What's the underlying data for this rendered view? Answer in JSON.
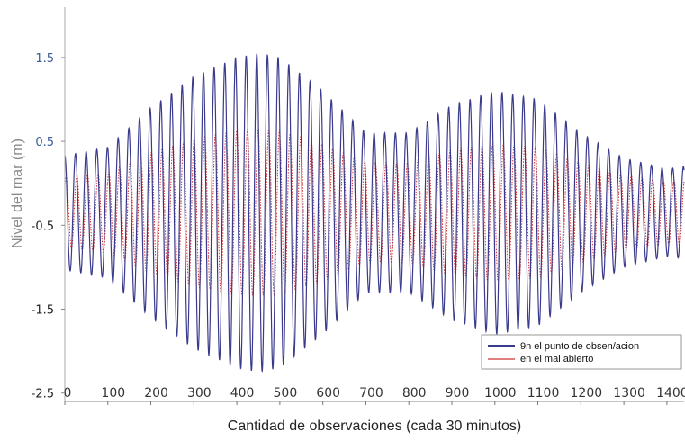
{
  "chart_data": {
    "type": "line",
    "title": "",
    "xlabel": "Cantidad de observaciones (cada 30 minutos)",
    "ylabel": "Nivel del mar (m)",
    "xlim": [
      0,
      1440
    ],
    "ylim": [
      -2.6,
      2.1
    ],
    "x_ticks": [
      0,
      100,
      200,
      300,
      400,
      500,
      600,
      700,
      800,
      900,
      1000,
      1100,
      1200,
      1300,
      1400
    ],
    "y_ticks": [
      -2.5,
      -1.5,
      -0.5,
      0.5,
      1.5
    ],
    "x_tick_labels": [
      "0",
      "100",
      "200",
      "300",
      "400",
      "500",
      "600",
      "700",
      "800",
      "900",
      "1000",
      "1100",
      "1200",
      "1300",
      "1400"
    ],
    "y_tick_labels": [
      "-2.5",
      "-1.5",
      "-0.5",
      "0.5",
      "1.5"
    ],
    "grid": false,
    "legend_position": "bottom-right",
    "series": [
      {
        "name": "9n el punto de obsen/acion",
        "color": "#3a3a8c",
        "style": "solid",
        "description_values": {
          "period_obs": 24.8,
          "envelope_x": [
            0,
            100,
            200,
            300,
            400,
            450,
            500,
            600,
            700,
            800,
            900,
            1000,
            1100,
            1200,
            1300,
            1400,
            1440
          ],
          "envelope_amp": [
            0.68,
            0.78,
            1.25,
            1.62,
            1.85,
            1.9,
            1.85,
            1.45,
            0.95,
            0.95,
            1.28,
            1.45,
            1.35,
            0.95,
            0.65,
            0.52,
            0.55
          ],
          "mean": -0.35
        }
      },
      {
        "name": "en el mai abierto",
        "color": "#cc3333",
        "style": "dotted",
        "description_values": {
          "period_obs": 24.8,
          "phase_shift_obs": 3,
          "envelope_x": [
            0,
            100,
            200,
            300,
            400,
            450,
            500,
            600,
            700,
            800,
            900,
            1000,
            1100,
            1200,
            1300,
            1400,
            1440
          ],
          "envelope_amp": [
            0.42,
            0.48,
            0.72,
            0.88,
            0.98,
            1.0,
            0.98,
            0.82,
            0.6,
            0.6,
            0.75,
            0.82,
            0.78,
            0.6,
            0.45,
            0.38,
            0.4
          ],
          "mean": -0.35
        }
      }
    ]
  }
}
